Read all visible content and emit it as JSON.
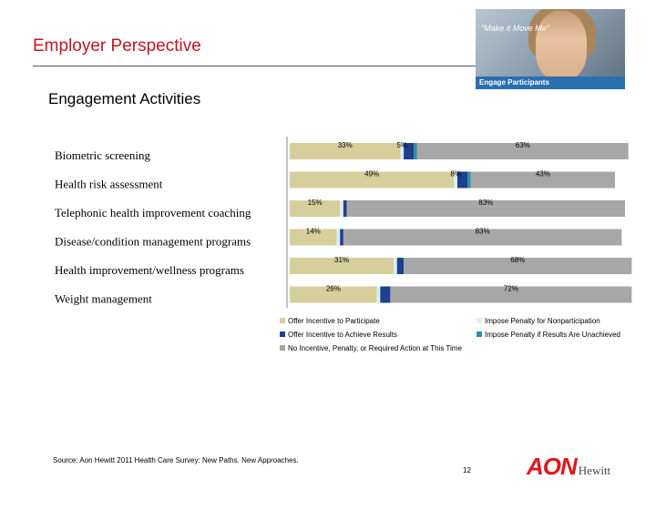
{
  "page": {
    "title": "Employer Perspective",
    "subtitle": "Engagement Activities",
    "photo_tagline": "\"Make it Move Me\"",
    "photo_banner": "Engage Participants",
    "source": "Source: Aon Hewitt 2011 Health Care Survey: New Paths. New Approaches.",
    "page_number": "12",
    "logo_main": "AON",
    "logo_sub": "Hewitt"
  },
  "chart_data": {
    "type": "bar",
    "orientation": "horizontal",
    "stacked": true,
    "categories": [
      "Biometric screening",
      "Health risk assessment",
      "Telephonic health improvement coaching",
      "Disease/condition management programs",
      "Health improvement/wellness programs",
      "Weight management"
    ],
    "series": [
      {
        "name": "Offer Incentive to Participate",
        "color": "#d6cf9c",
        "values": [
          33,
          49,
          15,
          14,
          31,
          26
        ],
        "labels": [
          "33%",
          "49%",
          "15%",
          "14%",
          "31%",
          "26%"
        ]
      },
      {
        "name": "Impose Penalty for Nonparticipation",
        "color": "#d8f1ef",
        "values": [
          1,
          1,
          1,
          1,
          1,
          1
        ],
        "labels": [
          "",
          "",
          "",
          "",
          "",
          ""
        ]
      },
      {
        "name": "Offer Incentive to Achieve Results",
        "color": "#1f3f8f",
        "values": [
          3,
          3,
          1,
          1,
          2,
          3
        ],
        "labels": [
          "",
          "",
          "",
          "",
          "",
          ""
        ]
      },
      {
        "name": "Impose Penalty if Results Are Unachieved",
        "color": "#2b8fa6",
        "values": [
          1,
          1,
          0,
          0,
          0,
          0
        ],
        "labels": [
          "",
          "",
          "",
          "",
          "",
          ""
        ]
      },
      {
        "name": "No Incentive, Penalty, or Required Action at This Time",
        "color": "#a7a7a7",
        "values": [
          63,
          43,
          83,
          83,
          68,
          72
        ],
        "labels": [
          "63%",
          "43%",
          "83%",
          "83%",
          "68%",
          "72%"
        ]
      }
    ],
    "extra_labels": [
      {
        "category": "Biometric screening",
        "text": "5%"
      },
      {
        "category": "Health risk assessment",
        "text": "8%"
      }
    ],
    "xlim": [
      0,
      100
    ],
    "legend": "bottom",
    "grid": false
  }
}
